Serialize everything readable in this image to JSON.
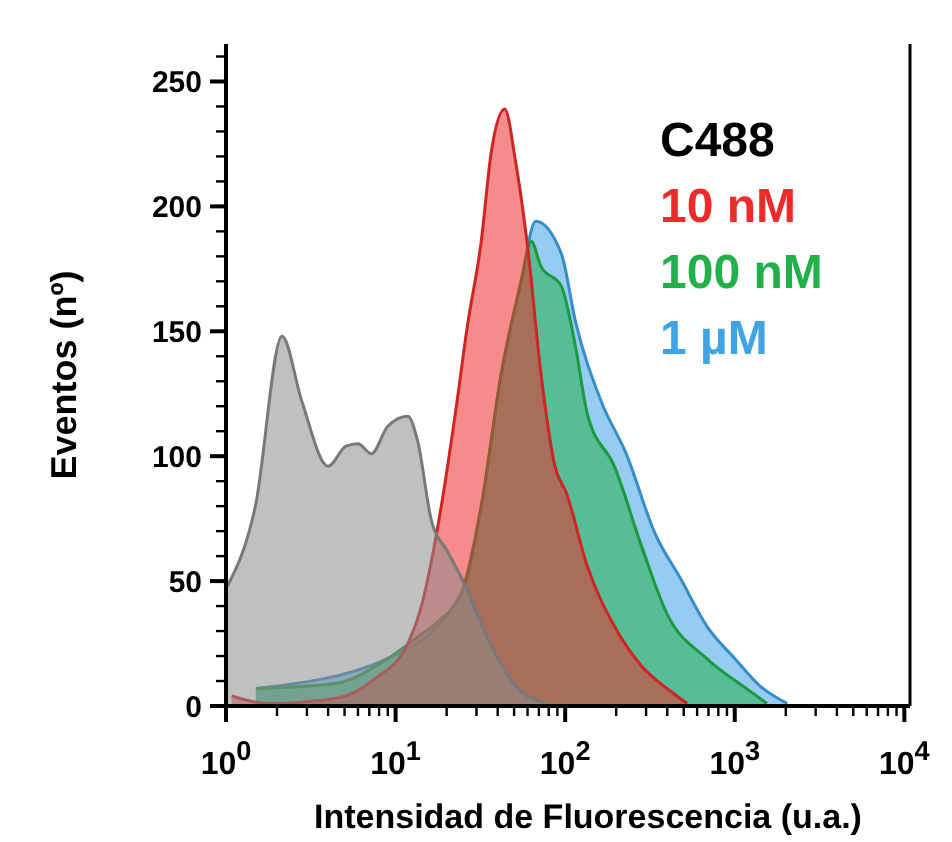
{
  "chart_data": {
    "type": "area",
    "xlabel": "Intensidad de Fluorescencia (u.a.)",
    "ylabel": "Eventos (nº)",
    "legend_title": "C488",
    "legend": "top right",
    "log": "x",
    "grid": false,
    "xlim": [
      1,
      10800
    ],
    "ylim": [
      0,
      265
    ],
    "xticks": [
      {
        "value": 1,
        "label": "10$^{0}$"
      },
      {
        "value": 2,
        "label": null
      },
      {
        "value": 3,
        "label": null
      },
      {
        "value": 4,
        "label": null
      },
      {
        "value": 5,
        "label": null
      },
      {
        "value": 6,
        "label": null
      },
      {
        "value": 7,
        "label": null
      },
      {
        "value": 8,
        "label": null
      },
      {
        "value": 9,
        "label": null
      },
      {
        "value": 10,
        "label": "10$^{1}$"
      },
      {
        "value": 20,
        "label": null
      },
      {
        "value": 30,
        "label": null
      },
      {
        "value": 40,
        "label": null
      },
      {
        "value": 50,
        "label": null
      },
      {
        "value": 60,
        "label": null
      },
      {
        "value": 70,
        "label": null
      },
      {
        "value": 80,
        "label": null
      },
      {
        "value": 90,
        "label": null
      },
      {
        "value": 100,
        "label": "10$^{2}$"
      },
      {
        "value": 200,
        "label": null
      },
      {
        "value": 300,
        "label": null
      },
      {
        "value": 400,
        "label": null
      },
      {
        "value": 500,
        "label": null
      },
      {
        "value": 600,
        "label": null
      },
      {
        "value": 700,
        "label": null
      },
      {
        "value": 800,
        "label": null
      },
      {
        "value": 900,
        "label": null
      },
      {
        "value": 1000,
        "label": "10$^{3}$"
      },
      {
        "value": 2000,
        "label": null
      },
      {
        "value": 3000,
        "label": null
      },
      {
        "value": 4000,
        "label": null
      },
      {
        "value": 5000,
        "label": null
      },
      {
        "value": 6000,
        "label": null
      },
      {
        "value": 7000,
        "label": null
      },
      {
        "value": 8000,
        "label": null
      },
      {
        "value": 9000,
        "label": null
      },
      {
        "value": 10000,
        "label": "10$^{4}$"
      }
    ],
    "yticks": [
      0,
      {
        "value": 10,
        "label": null
      },
      {
        "value": 20,
        "label": null
      },
      {
        "value": 30,
        "label": null
      },
      {
        "value": 40,
        "label": null
      },
      50,
      {
        "value": 60,
        "label": null
      },
      {
        "value": 70,
        "label": null
      },
      {
        "value": 80,
        "label": null
      },
      {
        "value": 90,
        "label": null
      },
      100,
      {
        "value": 110,
        "label": null
      },
      {
        "value": 120,
        "label": null
      },
      {
        "value": 130,
        "label": null
      },
      {
        "value": 140,
        "label": null
      },
      150,
      {
        "value": 160,
        "label": null
      },
      {
        "value": 170,
        "label": null
      },
      {
        "value": 180,
        "label": null
      },
      {
        "value": 190,
        "label": null
      },
      200,
      {
        "value": 210,
        "label": null
      },
      {
        "value": 220,
        "label": null
      },
      {
        "value": 230,
        "label": null
      },
      {
        "value": 240,
        "label": null
      },
      250,
      {
        "value": 260,
        "label": null
      }
    ],
    "series": [
      {
        "name": "1 µM",
        "color": "#3fa3e6",
        "x": [
          1.5,
          9.0,
          24.4,
          32,
          42,
          55,
          67,
          95,
          115,
          163,
          229,
          339,
          479,
          684,
          1000,
          1410,
          2040
        ],
        "values": [
          7,
          19,
          45,
          80,
          133,
          170,
          194,
          181,
          154,
          122,
          101,
          69,
          51,
          32,
          19,
          8,
          1
        ]
      },
      {
        "name": "100 nM",
        "color": "#22b04a",
        "x": [
          1.5,
          4.4,
          9.0,
          13.1,
          18.6,
          24.4,
          32,
          42,
          55,
          63,
          72,
          95,
          115,
          135,
          195,
          282,
          398,
          684,
          1170,
          1550
        ],
        "values": [
          7,
          9,
          19,
          27,
          35,
          45,
          80,
          133,
          170,
          186,
          176,
          168,
          144,
          117,
          96,
          64,
          37,
          19,
          7,
          1
        ]
      },
      {
        "name": "10 nM",
        "color": "#ee2b2b",
        "x": [
          1.08,
          1.77,
          4.4,
          7.6,
          11.8,
          14.2,
          18.6,
          22.5,
          26.5,
          32,
          36.7,
          44,
          51,
          60,
          72,
          87,
          102,
          135,
          195,
          282,
          398,
          525
        ],
        "values": [
          4,
          1,
          3,
          11,
          25,
          40,
          80,
          117,
          152,
          186,
          222,
          239,
          218,
          184,
          133,
          96,
          85,
          56,
          32,
          16,
          7,
          1
        ]
      },
      {
        "color": "#8c8c8c",
        "x": [
          1.02,
          1.49,
          2.14,
          2.8,
          4.0,
          5.1,
          6.0,
          7.2,
          9.0,
          11.8,
          13.5,
          16.3,
          20.2,
          25.8,
          35,
          51,
          78
        ],
        "values": [
          48,
          80,
          148,
          122,
          96,
          104,
          105,
          101,
          112,
          116,
          106,
          74,
          62,
          48,
          27,
          8,
          1
        ]
      }
    ]
  }
}
